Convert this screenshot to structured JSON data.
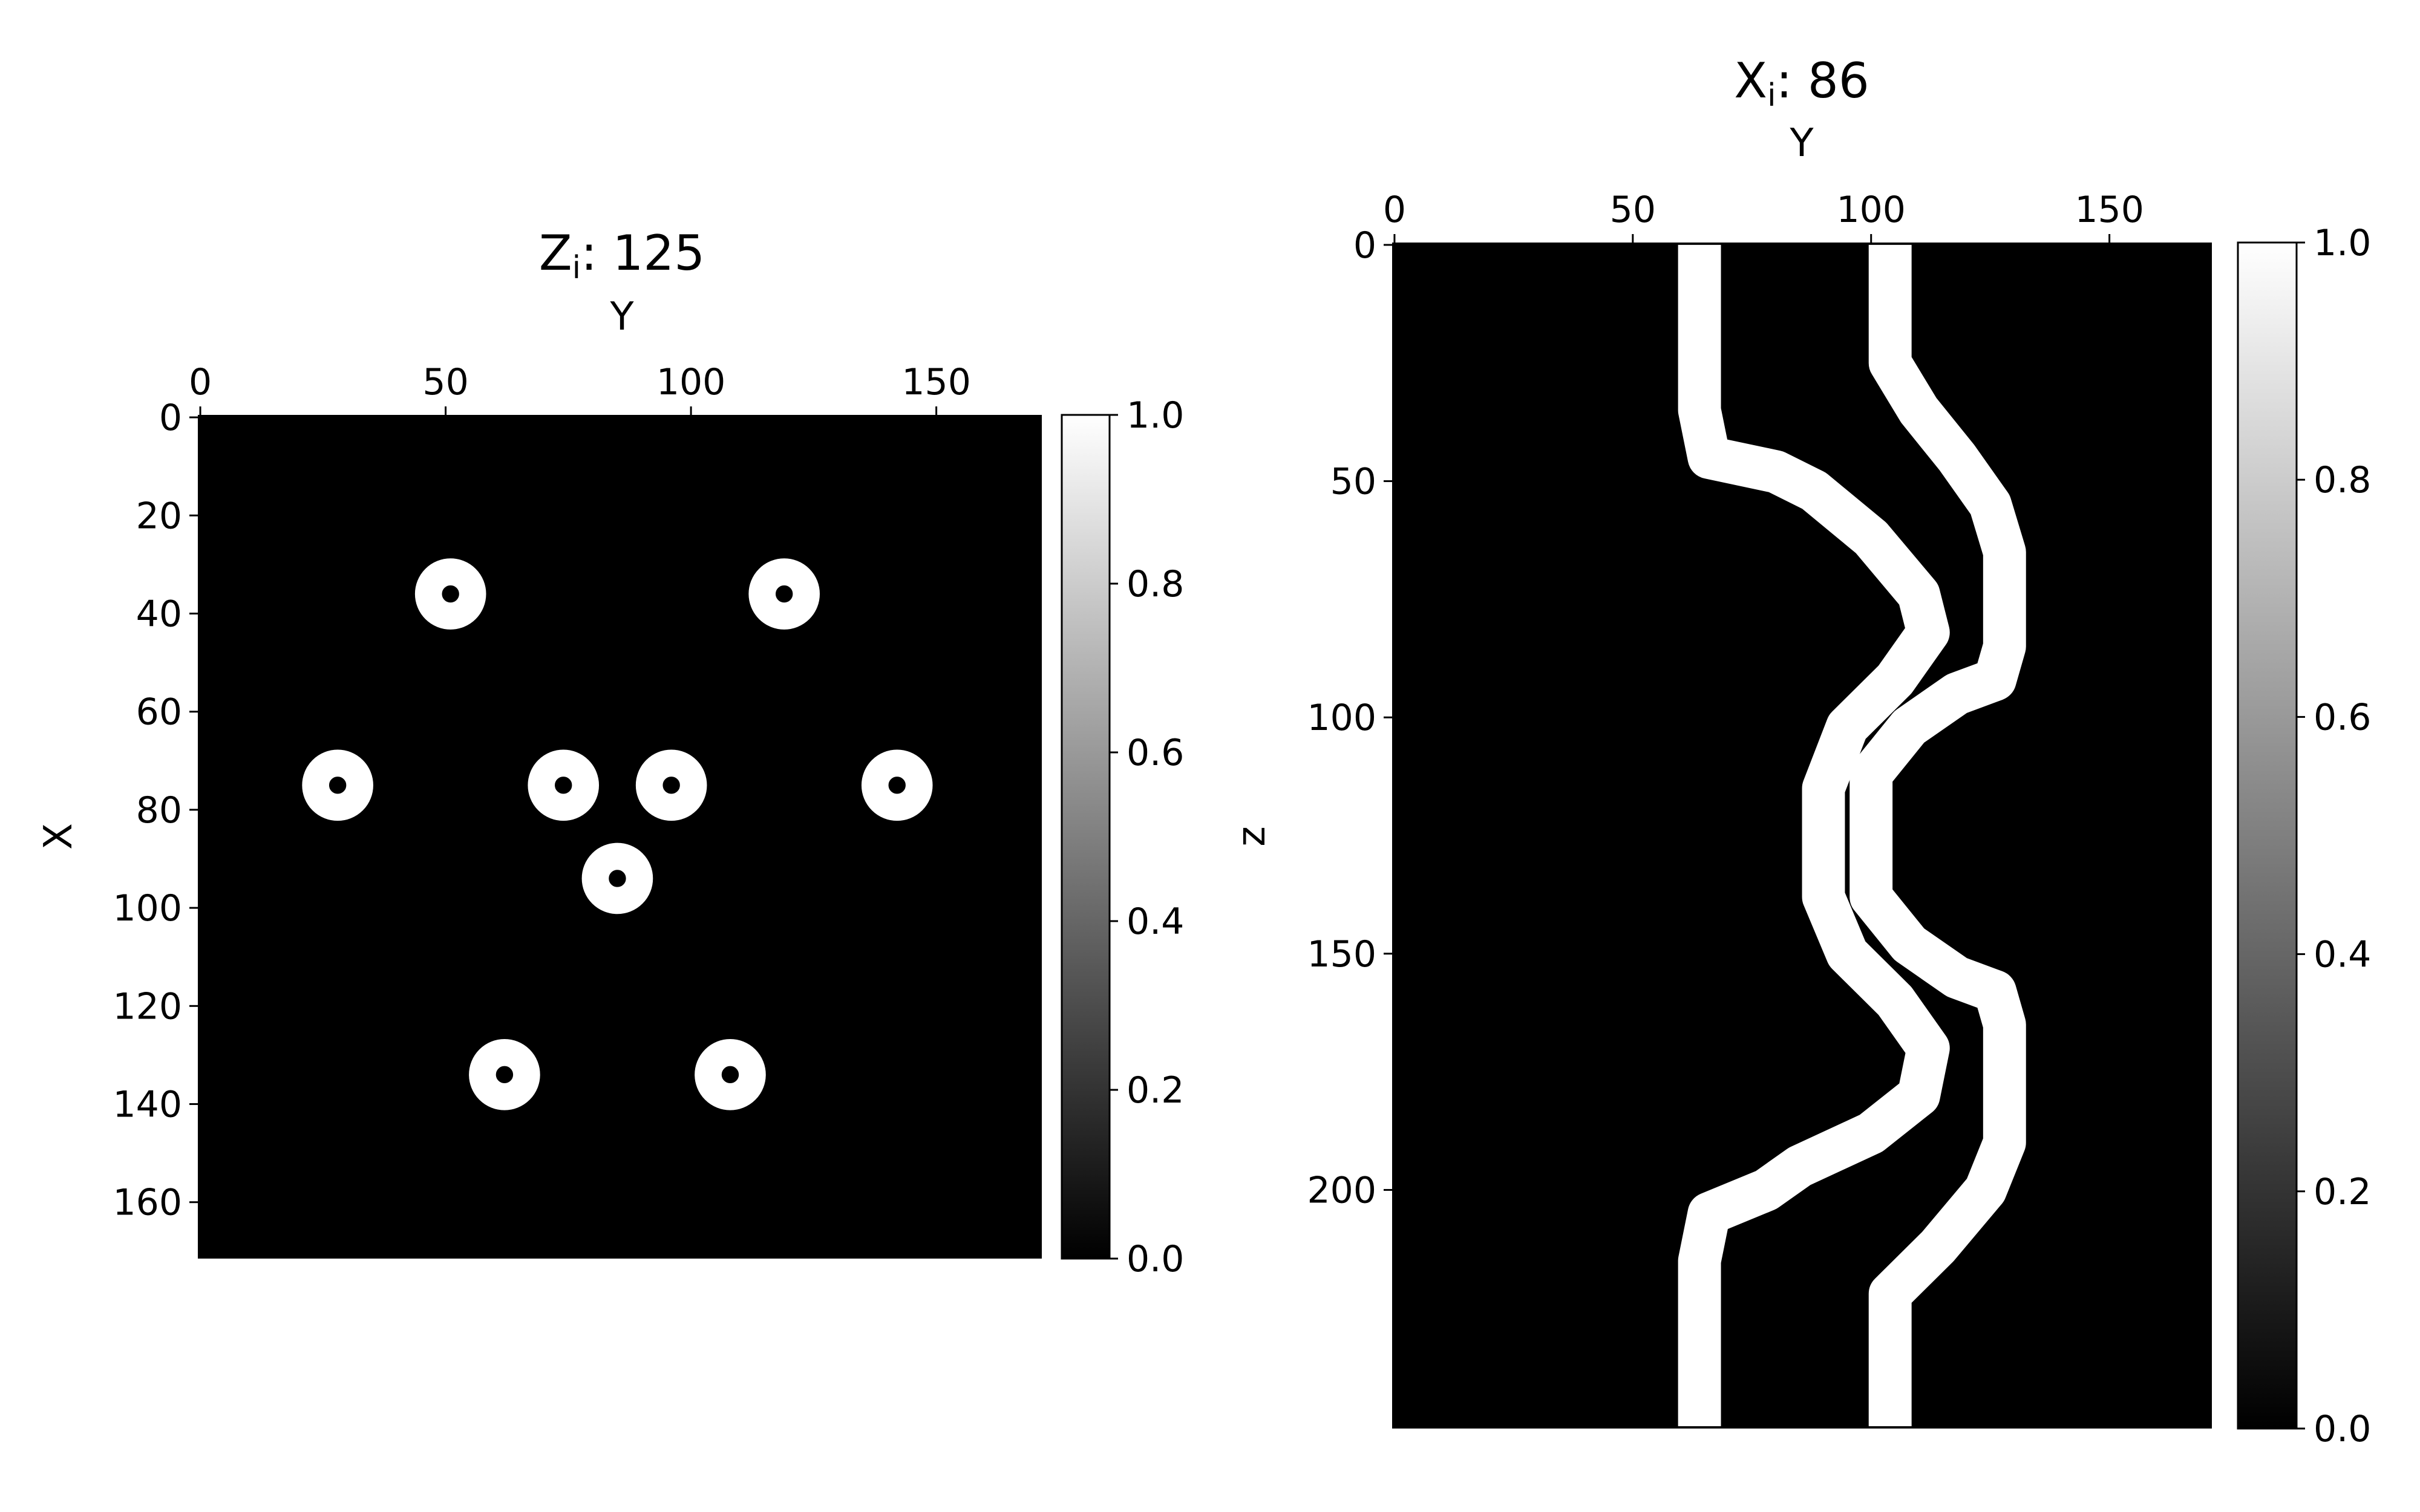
{
  "chart_data": [
    {
      "type": "heatmap",
      "title_main": "Z",
      "title_sub": "i",
      "title_value": ": 125",
      "xlabel": "Y",
      "ylabel": "X",
      "x_ticks": [
        "0",
        "50",
        "100",
        "150"
      ],
      "x_tick_values": [
        0,
        50,
        100,
        150
      ],
      "y_ticks": [
        "0",
        "20",
        "40",
        "60",
        "80",
        "100",
        "120",
        "140",
        "160"
      ],
      "y_tick_values": [
        0,
        20,
        40,
        60,
        80,
        100,
        120,
        140,
        160
      ],
      "xlim": [
        -0.5,
        171.5
      ],
      "ylim": [
        171.5,
        -0.5
      ],
      "x_axis_position": "top",
      "colormap": "gray",
      "background_value": 0.0,
      "rings": [
        {
          "y": 51,
          "x": 36,
          "value": 1.0
        },
        {
          "y": 119,
          "x": 36,
          "value": 1.0
        },
        {
          "y": 28,
          "x": 75,
          "value": 1.0
        },
        {
          "y": 74,
          "x": 75,
          "value": 1.0
        },
        {
          "y": 96,
          "x": 75,
          "value": 1.0
        },
        {
          "y": 142,
          "x": 75,
          "value": 1.0
        },
        {
          "y": 85,
          "x": 94,
          "value": 1.0
        },
        {
          "y": 62,
          "x": 134,
          "value": 1.0
        },
        {
          "y": 108,
          "x": 134,
          "value": 1.0
        }
      ],
      "colorbar": {
        "ticks": [
          "0.0",
          "0.2",
          "0.4",
          "0.6",
          "0.8",
          "1.0"
        ],
        "tick_values": [
          0.0,
          0.2,
          0.4,
          0.6,
          0.8,
          1.0
        ],
        "range": [
          0.0,
          1.0
        ]
      }
    },
    {
      "type": "heatmap",
      "title_main": "X",
      "title_sub": "i",
      "title_value": ": 86",
      "xlabel": "Y",
      "ylabel": "z",
      "x_ticks": [
        "0",
        "50",
        "100",
        "150"
      ],
      "x_tick_values": [
        0,
        50,
        100,
        150
      ],
      "y_ticks": [
        "0",
        "50",
        "100",
        "150",
        "200"
      ],
      "y_tick_values": [
        0,
        50,
        100,
        150,
        200
      ],
      "xlim": [
        -0.5,
        171.5
      ],
      "ylim": [
        250.5,
        -0.5
      ],
      "x_axis_position": "top",
      "colormap": "gray",
      "background_value": 0.0,
      "strands": [
        {
          "value": 1.0,
          "path": [
            [
              64,
              0
            ],
            [
              64,
              35
            ],
            [
              66,
              45
            ],
            [
              80,
              48
            ],
            [
              88,
              52
            ],
            [
              100,
              62
            ],
            [
              110,
              74
            ],
            [
              112,
              82
            ],
            [
              105,
              92
            ],
            [
              95,
              102
            ],
            [
              90,
              115
            ],
            [
              90,
              138
            ],
            [
              95,
              150
            ],
            [
              105,
              160
            ],
            [
              112,
              170
            ],
            [
              110,
              180
            ],
            [
              100,
              188
            ],
            [
              85,
              195
            ],
            [
              78,
              200
            ],
            [
              66,
              205
            ],
            [
              64,
              215
            ],
            [
              64,
              250
            ]
          ]
        },
        {
          "value": 1.0,
          "path": [
            [
              104,
              0
            ],
            [
              104,
              25
            ],
            [
              110,
              35
            ],
            [
              118,
              45
            ],
            [
              125,
              55
            ],
            [
              128,
              65
            ],
            [
              128,
              85
            ],
            [
              126,
              92
            ],
            [
              118,
              95
            ],
            [
              108,
              102
            ],
            [
              100,
              112
            ],
            [
              100,
              138
            ],
            [
              108,
              148
            ],
            [
              118,
              155
            ],
            [
              126,
              158
            ],
            [
              128,
              165
            ],
            [
              128,
              190
            ],
            [
              124,
              200
            ],
            [
              114,
              212
            ],
            [
              104,
              222
            ],
            [
              104,
              250
            ]
          ]
        }
      ],
      "colorbar": {
        "ticks": [
          "0.0",
          "0.2",
          "0.4",
          "0.6",
          "0.8",
          "1.0"
        ],
        "tick_values": [
          0.0,
          0.2,
          0.4,
          0.6,
          0.8,
          1.0
        ],
        "range": [
          0.0,
          1.0
        ]
      }
    }
  ]
}
